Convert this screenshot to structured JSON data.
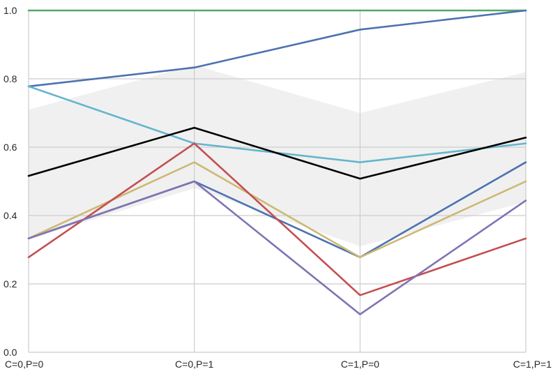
{
  "chart_data": {
    "type": "line",
    "title": "",
    "xlabel": "",
    "ylabel": "",
    "categories": [
      "C=0,P=0",
      "C=0,P=1",
      "C=1,P=0",
      "C=1,P=1"
    ],
    "ylim": [
      0.0,
      1.0
    ],
    "yticks": [
      "0.0",
      "0.2",
      "0.4",
      "0.6",
      "0.8",
      "1.0"
    ],
    "grid": true,
    "legend": "none",
    "band": {
      "lower": [
        0.33,
        0.48,
        0.31,
        0.44
      ],
      "upper": [
        0.71,
        0.84,
        0.7,
        0.82
      ],
      "color": "#f0f0f0"
    },
    "series": [
      {
        "values": [
          1.0,
          1.0,
          1.0,
          1.0
        ],
        "color": "#55a868",
        "width": 1.4
      },
      {
        "values": [
          0.778,
          0.833,
          0.944,
          1.0
        ],
        "color": "#4c72b0"
      },
      {
        "values": [
          0.778,
          0.611,
          0.556,
          0.611
        ],
        "color": "#64b5cd"
      },
      {
        "values": [
          0.333,
          0.5,
          0.278,
          0.556
        ],
        "color": "#4c72b0"
      },
      {
        "values": [
          0.333,
          0.556,
          0.278,
          0.5
        ],
        "color": "#ccb974"
      },
      {
        "values": [
          0.278,
          0.611,
          0.167,
          0.333
        ],
        "color": "#c44e52"
      },
      {
        "values": [
          0.333,
          0.5,
          0.111,
          0.444
        ],
        "color": "#8172b2"
      },
      {
        "values": [
          0.516,
          0.657,
          0.508,
          0.628
        ],
        "color": "#000000"
      }
    ]
  }
}
